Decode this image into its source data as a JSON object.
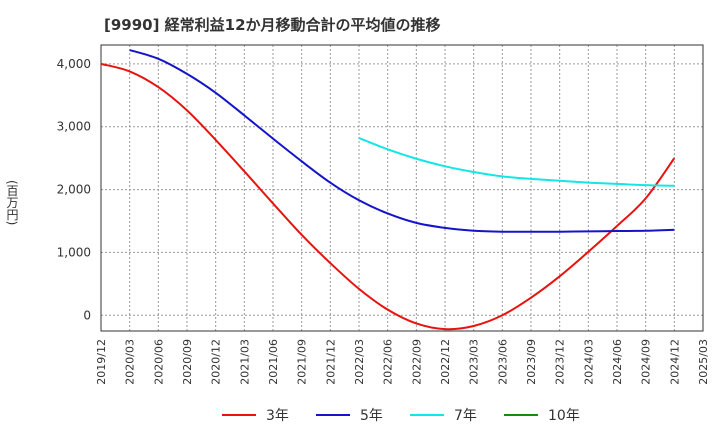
{
  "chart_data": {
    "type": "line",
    "title": "[9990]  経常利益12か月移動合計の平均値の推移",
    "ylabel": "(百万円)",
    "xlabel": "",
    "ylim": [
      -250,
      4300
    ],
    "yticks": [
      0,
      1000,
      2000,
      3000,
      4000
    ],
    "ytick_labels": [
      "0",
      "1,000",
      "2,000",
      "3,000",
      "4,000"
    ],
    "xticks": [
      "2019/12",
      "2020/03",
      "2020/06",
      "2020/09",
      "2020/12",
      "2021/03",
      "2021/06",
      "2021/09",
      "2021/12",
      "2022/03",
      "2022/06",
      "2022/09",
      "2022/12",
      "2023/03",
      "2023/06",
      "2023/09",
      "2023/12",
      "2024/03",
      "2024/06",
      "2024/09",
      "2024/12",
      "2025/03"
    ],
    "grid": true,
    "legend_position": "bottom",
    "series": [
      {
        "name": "3年",
        "color": "#e6140f",
        "x": [
          "2019/12",
          "2020/03",
          "2020/06",
          "2020/09",
          "2020/12",
          "2021/03",
          "2021/06",
          "2021/09",
          "2021/12",
          "2022/03",
          "2022/06",
          "2022/09",
          "2022/12",
          "2023/03",
          "2023/06",
          "2023/09",
          "2023/12",
          "2024/03",
          "2024/06",
          "2024/09",
          "2024/12"
        ],
        "values": [
          4000,
          3880,
          3630,
          3260,
          2790,
          2290,
          1780,
          1280,
          830,
          420,
          90,
          -130,
          -220,
          -170,
          0,
          280,
          620,
          1010,
          1420,
          1860,
          2500
        ]
      },
      {
        "name": "5年",
        "color": "#1414c8",
        "x": [
          "2020/03",
          "2020/06",
          "2020/09",
          "2020/12",
          "2021/03",
          "2021/06",
          "2021/09",
          "2021/12",
          "2022/03",
          "2022/06",
          "2022/09",
          "2022/12",
          "2023/03",
          "2023/06",
          "2023/09",
          "2023/12",
          "2024/03",
          "2024/06",
          "2024/09",
          "2024/12"
        ],
        "values": [
          4220,
          4080,
          3840,
          3540,
          3180,
          2810,
          2450,
          2110,
          1830,
          1620,
          1470,
          1390,
          1345,
          1330,
          1330,
          1330,
          1335,
          1340,
          1345,
          1360
        ]
      },
      {
        "name": "7年",
        "color": "#14e6e6",
        "x": [
          "2022/03",
          "2022/06",
          "2022/09",
          "2022/12",
          "2023/03",
          "2023/06",
          "2023/09",
          "2023/12",
          "2024/03",
          "2024/06",
          "2024/09",
          "2024/12"
        ],
        "values": [
          2820,
          2640,
          2490,
          2370,
          2280,
          2210,
          2170,
          2140,
          2110,
          2090,
          2070,
          2060
        ]
      },
      {
        "name": "10年",
        "color": "#148c14",
        "x": [],
        "values": []
      }
    ]
  }
}
